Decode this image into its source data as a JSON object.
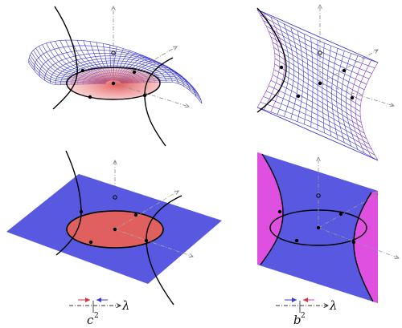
{
  "labels": {
    "left_param": "c",
    "left_exp": "2",
    "right_param": "b",
    "right_exp": "2",
    "lambda_left": "λ",
    "lambda_right": "λ"
  },
  "colors": {
    "ellipse_fill": "#e06060",
    "plane_fill": "#5858e0",
    "hyperbola_fill": "#e050e0",
    "mesh_blue": "#3a3ad0",
    "mesh_purple": "#9a30c0",
    "arrow_red": "#e03040",
    "arrow_blue": "#3a3ad0",
    "curve": "#000000"
  }
}
